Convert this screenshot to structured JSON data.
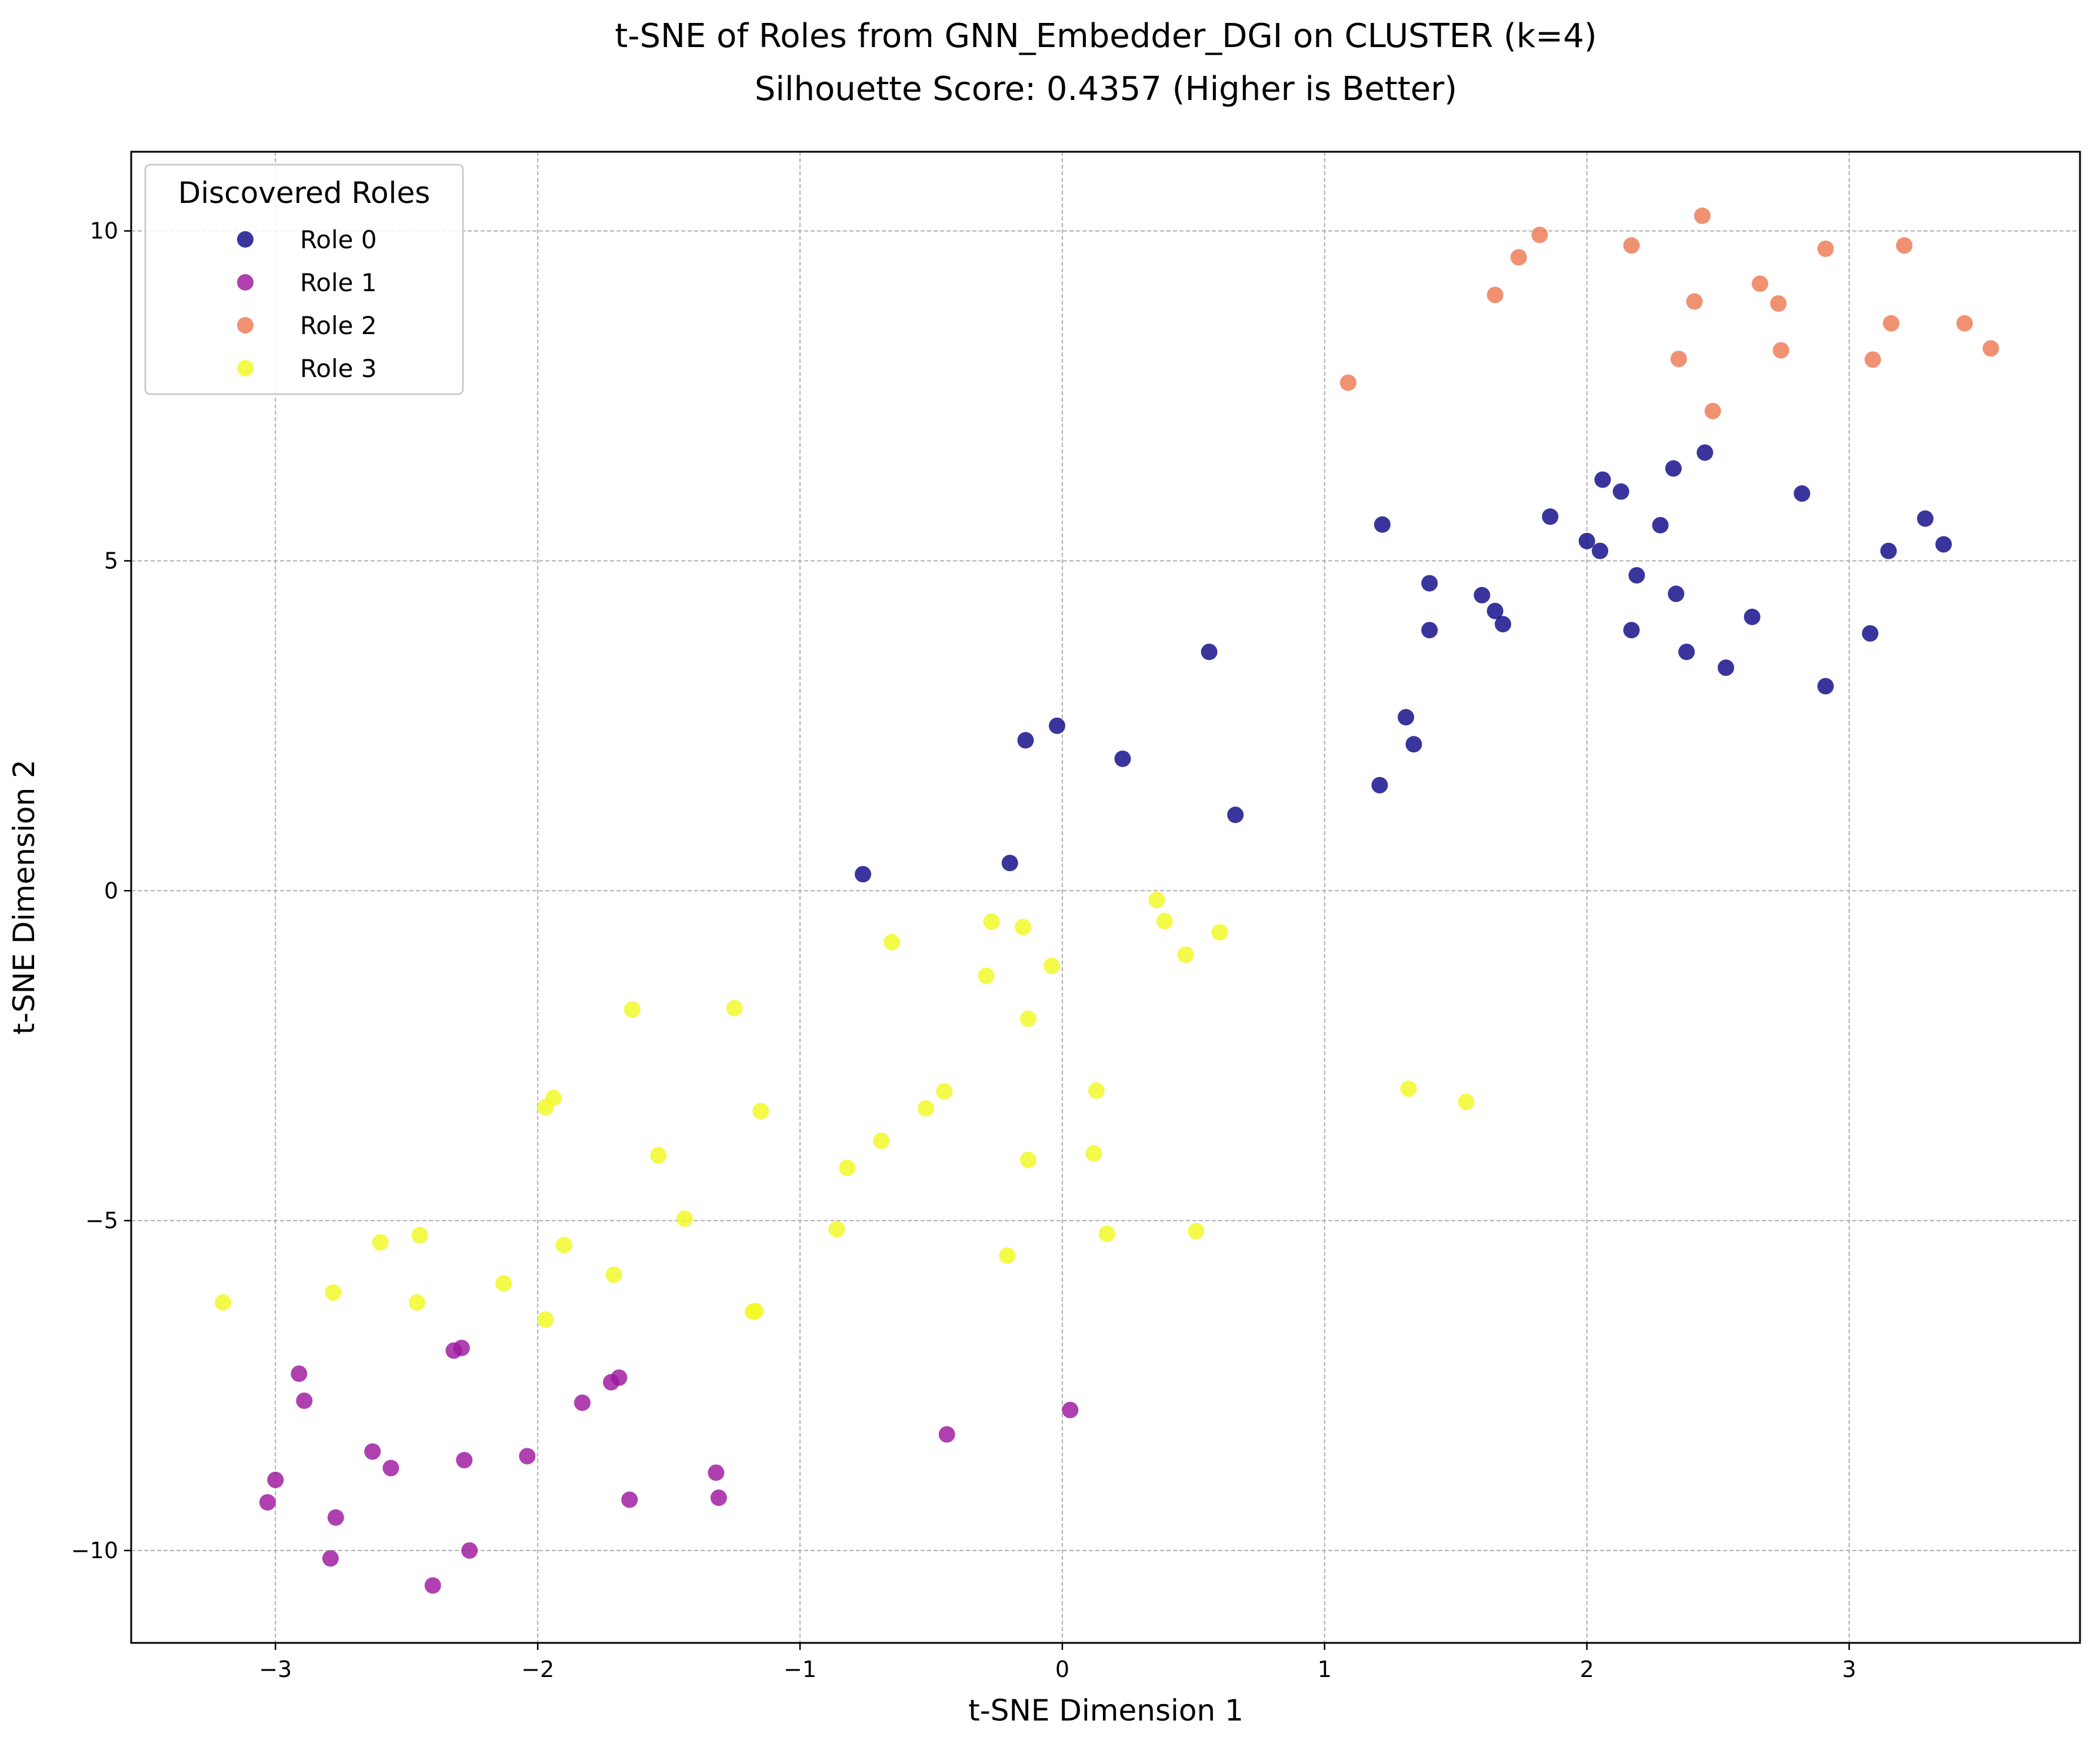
{
  "chart_data": {
    "type": "scatter",
    "title": "t-SNE of Roles from GNN_Embedder_DGI on CLUSTER (k=4)",
    "subtitle": "Silhouette Score: 0.4357 (Higher is Better)",
    "xlabel": "t-SNE Dimension 1",
    "ylabel": "t-SNE Dimension 2",
    "xlim": [
      -3.55,
      3.88
    ],
    "ylim": [
      -11.4,
      11.2
    ],
    "xticks": [
      -3,
      -2,
      -1,
      0,
      1,
      2,
      3
    ],
    "xtick_labels": [
      "−3",
      "−2",
      "−1",
      "0",
      "1",
      "2",
      "3"
    ],
    "yticks": [
      -10,
      -5,
      0,
      5,
      10
    ],
    "ytick_labels": [
      "−10",
      "−5",
      "0",
      "5",
      "10"
    ],
    "grid": true,
    "legend": {
      "title": "Discovered Roles",
      "position": "top-left"
    },
    "series": [
      {
        "name": "Role 0",
        "color": "#0d0887",
        "points": [
          [
            -0.76,
            0.25
          ],
          [
            -0.2,
            0.42
          ],
          [
            -0.14,
            2.28
          ],
          [
            -0.02,
            2.5
          ],
          [
            0.23,
            2.0
          ],
          [
            0.56,
            3.62
          ],
          [
            0.66,
            1.15
          ],
          [
            1.21,
            1.6
          ],
          [
            1.22,
            5.55
          ],
          [
            1.31,
            2.63
          ],
          [
            1.34,
            2.22
          ],
          [
            1.4,
            4.66
          ],
          [
            1.4,
            3.95
          ],
          [
            1.6,
            4.48
          ],
          [
            1.65,
            4.24
          ],
          [
            1.68,
            4.04
          ],
          [
            1.86,
            5.67
          ],
          [
            2.0,
            5.3
          ],
          [
            2.05,
            5.15
          ],
          [
            2.06,
            6.23
          ],
          [
            2.13,
            6.05
          ],
          [
            2.17,
            3.95
          ],
          [
            2.19,
            4.78
          ],
          [
            2.28,
            5.54
          ],
          [
            2.33,
            6.4
          ],
          [
            2.34,
            4.5
          ],
          [
            2.38,
            3.62
          ],
          [
            2.45,
            6.64
          ],
          [
            2.53,
            3.38
          ],
          [
            2.63,
            4.15
          ],
          [
            2.82,
            6.02
          ],
          [
            2.91,
            3.1
          ],
          [
            3.08,
            3.9
          ],
          [
            3.15,
            5.15
          ],
          [
            3.29,
            5.64
          ],
          [
            3.36,
            5.25
          ]
        ]
      },
      {
        "name": "Role 1",
        "color": "#9c179e",
        "points": [
          [
            -3.03,
            -9.27
          ],
          [
            -3.0,
            -8.93
          ],
          [
            -2.91,
            -7.32
          ],
          [
            -2.89,
            -7.73
          ],
          [
            -2.79,
            -10.12
          ],
          [
            -2.77,
            -9.5
          ],
          [
            -2.63,
            -8.5
          ],
          [
            -2.56,
            -8.75
          ],
          [
            -2.4,
            -10.53
          ],
          [
            -2.32,
            -6.97
          ],
          [
            -2.29,
            -6.93
          ],
          [
            -2.28,
            -8.63
          ],
          [
            -2.26,
            -10.0
          ],
          [
            -2.04,
            -8.57
          ],
          [
            -1.83,
            -7.76
          ],
          [
            -1.72,
            -7.45
          ],
          [
            -1.69,
            -7.38
          ],
          [
            -1.65,
            -9.23
          ],
          [
            -1.32,
            -8.82
          ],
          [
            -1.31,
            -9.2
          ],
          [
            -0.44,
            -8.24
          ],
          [
            0.03,
            -7.87
          ]
        ]
      },
      {
        "name": "Role 2",
        "color": "#ed7953",
        "points": [
          [
            1.09,
            7.7
          ],
          [
            1.65,
            9.03
          ],
          [
            1.74,
            9.6
          ],
          [
            1.82,
            9.94
          ],
          [
            2.17,
            9.78
          ],
          [
            2.35,
            8.06
          ],
          [
            2.41,
            8.93
          ],
          [
            2.44,
            10.23
          ],
          [
            2.48,
            7.27
          ],
          [
            2.66,
            9.2
          ],
          [
            2.73,
            8.9
          ],
          [
            2.74,
            8.19
          ],
          [
            2.91,
            9.73
          ],
          [
            3.09,
            8.05
          ],
          [
            3.16,
            8.6
          ],
          [
            3.21,
            9.78
          ],
          [
            3.44,
            8.6
          ],
          [
            3.54,
            8.22
          ]
        ]
      },
      {
        "name": "Role 3",
        "color": "#f0f921",
        "points": [
          [
            -3.2,
            -6.24
          ],
          [
            -2.78,
            -6.09
          ],
          [
            -2.6,
            -5.33
          ],
          [
            -2.46,
            -6.24
          ],
          [
            -2.45,
            -5.22
          ],
          [
            -2.13,
            -5.95
          ],
          [
            -1.97,
            -6.5
          ],
          [
            -1.97,
            -3.28
          ],
          [
            -1.94,
            -3.14
          ],
          [
            -1.9,
            -5.37
          ],
          [
            -1.71,
            -5.82
          ],
          [
            -1.64,
            -1.8
          ],
          [
            -1.54,
            -4.01
          ],
          [
            -1.44,
            -4.97
          ],
          [
            -1.25,
            -1.78
          ],
          [
            -1.18,
            -6.38
          ],
          [
            -1.17,
            -6.37
          ],
          [
            -1.15,
            -3.34
          ],
          [
            -0.86,
            -5.13
          ],
          [
            -0.82,
            -4.2
          ],
          [
            -0.69,
            -3.79
          ],
          [
            -0.65,
            -0.78
          ],
          [
            -0.52,
            -3.3
          ],
          [
            -0.45,
            -3.04
          ],
          [
            -0.29,
            -1.29
          ],
          [
            -0.27,
            -0.47
          ],
          [
            -0.21,
            -5.53
          ],
          [
            -0.15,
            -0.55
          ],
          [
            -0.13,
            -1.94
          ],
          [
            -0.13,
            -4.08
          ],
          [
            -0.04,
            -1.14
          ],
          [
            0.12,
            -3.98
          ],
          [
            0.13,
            -3.03
          ],
          [
            0.17,
            -5.2
          ],
          [
            0.36,
            -0.14
          ],
          [
            0.39,
            -0.46
          ],
          [
            0.47,
            -0.97
          ],
          [
            0.51,
            -5.16
          ],
          [
            0.6,
            -0.63
          ],
          [
            1.32,
            -3.0
          ],
          [
            1.54,
            -3.2
          ]
        ]
      }
    ]
  }
}
